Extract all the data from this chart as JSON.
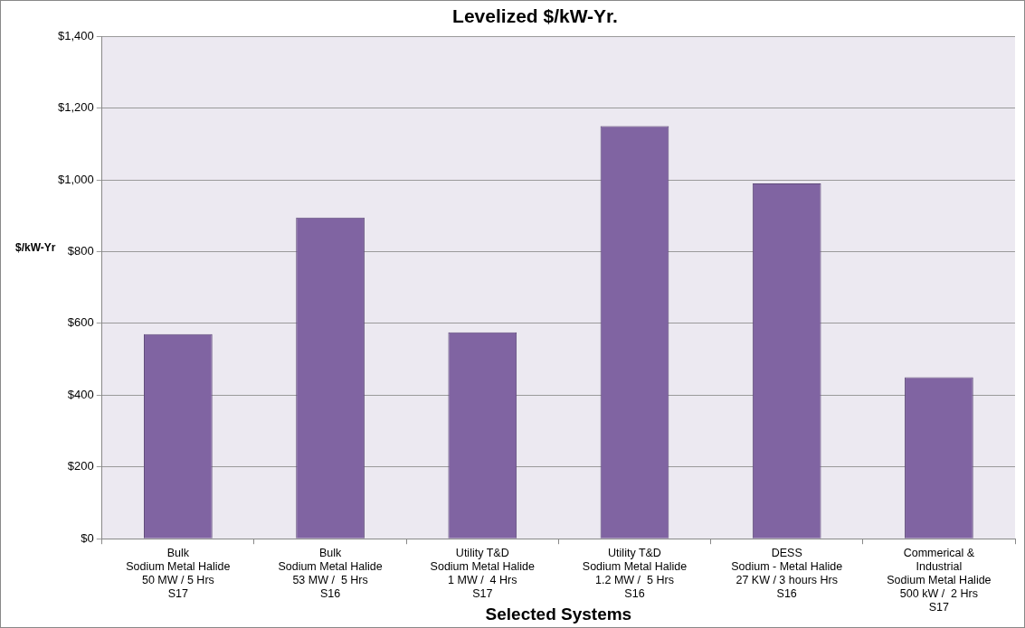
{
  "chart_data": {
    "type": "bar",
    "title": "Levelized $/kW-Yr.",
    "xlabel": "Selected Systems",
    "ylabel": "$/kW-Yr",
    "categories": [
      "Bulk\nSodium Metal Halide\n50 MW / 5 Hrs\nS17",
      "Bulk\nSodium Metal Halide\n53 MW /  5 Hrs\nS16",
      "Utility T&D\nSodium Metal Halide\n1 MW /  4 Hrs\nS17",
      "Utility T&D\nSodium Metal Halide\n1.2 MW /  5 Hrs\nS16",
      "DESS\nSodium - Metal Halide\n27 KW / 3 hours Hrs\nS16",
      "Commerical &\nIndustrial\nSodium Metal Halide\n500 kW /  2 Hrs\nS17"
    ],
    "values": [
      570,
      895,
      575,
      1150,
      990,
      450
    ],
    "color": "#8064a2",
    "ylim": [
      0,
      1400
    ],
    "yticks": [
      {
        "value": 0,
        "label": "$0"
      },
      {
        "value": 200,
        "label": "$200"
      },
      {
        "value": 400,
        "label": "$400"
      },
      {
        "value": 600,
        "label": "$600"
      },
      {
        "value": 800,
        "label": "$800"
      },
      {
        "value": 1000,
        "label": "$1,000"
      },
      {
        "value": 1200,
        "label": "$1,200"
      },
      {
        "value": 1400,
        "label": "$1,400"
      }
    ],
    "grid": "y",
    "legend": false
  }
}
